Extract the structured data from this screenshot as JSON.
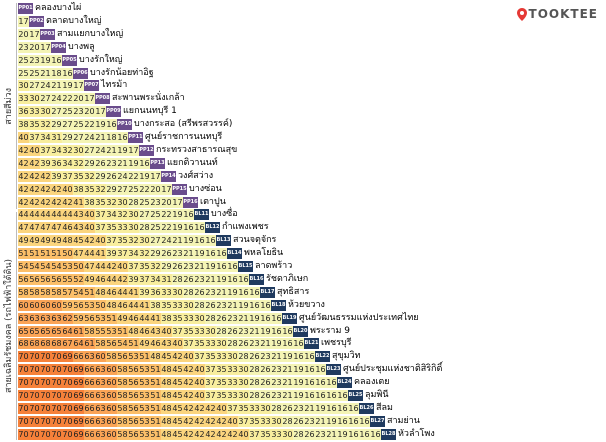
{
  "brand": {
    "name": "TOOKTEE",
    "icon": "map-pin-icon",
    "icon_color": "#e53935"
  },
  "groups": [
    {
      "label": "สายสีม่วง",
      "color": "#6a4c8c"
    },
    {
      "label": "สายเฉลิมรัชมงคล (รถไฟฟ้าใต้ดิน)",
      "color": "#1f3a5f"
    }
  ],
  "fare_colors": {
    "20": "#f4f4b5",
    "30": "#f8ee9e",
    "40": "#fbd57e",
    "50": "#fcbf69",
    "60": "#fba456",
    "70": "#f6813a"
  },
  "stations": [
    {
      "code": "PP01",
      "name": "คลองบางไผ่",
      "group": 0,
      "fares": []
    },
    {
      "code": "PP02",
      "name": "ตลาดบางใหญ่",
      "group": 0,
      "fares": [
        17
      ]
    },
    {
      "code": "PP03",
      "name": "สามแยกบางใหญ่",
      "group": 0,
      "fares": [
        20,
        17
      ]
    },
    {
      "code": "PP04",
      "name": "บางพลู",
      "group": 0,
      "fares": [
        23,
        20,
        17
      ]
    },
    {
      "code": "PP05",
      "name": "บางรักใหญ่",
      "group": 0,
      "fares": [
        25,
        23,
        19,
        16
      ]
    },
    {
      "code": "PP06",
      "name": "บางรักน้อยท่าอิฐ",
      "group": 0,
      "fares": [
        25,
        25,
        21,
        18,
        16
      ]
    },
    {
      "code": "PP07",
      "name": "ไทรม้า",
      "group": 0,
      "fares": [
        30,
        27,
        24,
        21,
        19,
        17
      ]
    },
    {
      "code": "PP08",
      "name": "สะพานพระนั่งเกล้า",
      "group": 0,
      "fares": [
        33,
        30,
        27,
        24,
        22,
        20,
        17
      ]
    },
    {
      "code": "PP09",
      "name": "แยกนนทบุรี 1",
      "group": 0,
      "fares": [
        36,
        33,
        30,
        27,
        25,
        23,
        20,
        17
      ]
    },
    {
      "code": "PP10",
      "name": "บางกระสอ (สรีพรสวรรค์)",
      "group": 0,
      "fares": [
        38,
        35,
        32,
        29,
        27,
        25,
        22,
        19,
        16
      ]
    },
    {
      "code": "PP11",
      "name": "ศูนย์ราชการนนทบุรี",
      "group": 0,
      "fares": [
        40,
        37,
        34,
        31,
        29,
        27,
        24,
        21,
        18,
        16
      ]
    },
    {
      "code": "PP12",
      "name": "กระทรวงสาธารณสุข",
      "group": 0,
      "fares": [
        42,
        40,
        37,
        34,
        32,
        30,
        27,
        24,
        21,
        19,
        17
      ]
    },
    {
      "code": "PP13",
      "name": "แยกติวานนท์",
      "group": 0,
      "fares": [
        42,
        42,
        39,
        36,
        34,
        32,
        29,
        26,
        23,
        21,
        19,
        16
      ]
    },
    {
      "code": "PP14",
      "name": "วงศ์สว่าง",
      "group": 0,
      "fares": [
        42,
        42,
        42,
        39,
        37,
        35,
        32,
        29,
        26,
        24,
        22,
        19,
        17
      ]
    },
    {
      "code": "PP15",
      "name": "บางซ่อน",
      "group": 0,
      "fares": [
        42,
        42,
        42,
        42,
        40,
        38,
        35,
        32,
        29,
        27,
        25,
        22,
        20,
        17
      ]
    },
    {
      "code": "PP16",
      "name": "เตาปูน",
      "group": 0,
      "fares": [
        42,
        42,
        42,
        42,
        42,
        41,
        38,
        35,
        32,
        30,
        28,
        25,
        23,
        20,
        17
      ]
    },
    {
      "code": "BL11",
      "name": "บางซื่อ",
      "group": 1,
      "fares": [
        44,
        44,
        44,
        44,
        44,
        43,
        40,
        37,
        34,
        32,
        30,
        27,
        25,
        22,
        19,
        16
      ]
    },
    {
      "code": "BL12",
      "name": "กำแพงเพชร",
      "group": 1,
      "fares": [
        47,
        47,
        47,
        47,
        46,
        43,
        40,
        37,
        35,
        33,
        30,
        28,
        25,
        22,
        19,
        16,
        16
      ]
    },
    {
      "code": "BL13",
      "name": "สวนจตุจักร",
      "group": 1,
      "fares": [
        49,
        49,
        49,
        49,
        48,
        45,
        42,
        40,
        37,
        35,
        32,
        30,
        27,
        24,
        21,
        19,
        16,
        16
      ]
    },
    {
      "code": "BL14",
      "name": "พหลโยธิน",
      "group": 1,
      "fares": [
        51,
        51,
        51,
        51,
        50,
        47,
        44,
        41,
        39,
        37,
        34,
        32,
        29,
        26,
        23,
        21,
        19,
        16,
        16
      ]
    },
    {
      "code": "BL15",
      "name": "ลาดพร้าว",
      "group": 1,
      "fares": [
        54,
        54,
        54,
        54,
        53,
        50,
        47,
        44,
        42,
        40,
        37,
        35,
        32,
        29,
        26,
        23,
        21,
        19,
        16,
        16
      ]
    },
    {
      "code": "BL16",
      "name": "รัชดาภิเษก",
      "group": 1,
      "fares": [
        56,
        56,
        56,
        56,
        55,
        52,
        49,
        46,
        44,
        42,
        39,
        37,
        34,
        31,
        28,
        26,
        23,
        21,
        19,
        16,
        16
      ]
    },
    {
      "code": "BL17",
      "name": "สุทธิสาร",
      "group": 1,
      "fares": [
        58,
        58,
        58,
        58,
        57,
        54,
        51,
        48,
        46,
        44,
        41,
        39,
        36,
        33,
        30,
        28,
        26,
        23,
        21,
        19,
        16,
        16
      ]
    },
    {
      "code": "BL18",
      "name": "ห้วยขวาง",
      "group": 1,
      "fares": [
        60,
        60,
        60,
        60,
        59,
        56,
        53,
        50,
        48,
        46,
        44,
        41,
        38,
        35,
        33,
        30,
        28,
        26,
        23,
        21,
        19,
        16,
        16
      ]
    },
    {
      "code": "BL19",
      "name": "ศูนย์วัฒนธรรมแห่งประเทศไทย",
      "group": 1,
      "fares": [
        63,
        63,
        63,
        63,
        62,
        59,
        56,
        53,
        51,
        49,
        46,
        44,
        41,
        38,
        35,
        33,
        30,
        28,
        26,
        23,
        21,
        19,
        16,
        16
      ]
    },
    {
      "code": "BL20",
      "name": "พระราม 9",
      "group": 1,
      "fares": [
        65,
        65,
        65,
        65,
        64,
        61,
        58,
        55,
        53,
        51,
        48,
        46,
        43,
        40,
        37,
        35,
        33,
        30,
        28,
        26,
        23,
        21,
        19,
        16,
        16
      ]
    },
    {
      "code": "BL21",
      "name": "เพชรบุรี",
      "group": 1,
      "fares": [
        68,
        68,
        68,
        68,
        67,
        64,
        61,
        58,
        56,
        54,
        51,
        49,
        46,
        43,
        40,
        37,
        35,
        33,
        30,
        28,
        26,
        23,
        21,
        19,
        16,
        16
      ]
    },
    {
      "code": "BL22",
      "name": "สุขุมวิท",
      "group": 1,
      "fares": [
        70,
        70,
        70,
        70,
        69,
        66,
        63,
        60,
        58,
        56,
        53,
        51,
        48,
        45,
        42,
        40,
        37,
        35,
        33,
        30,
        28,
        26,
        23,
        21,
        19,
        16,
        16
      ]
    },
    {
      "code": "BL23",
      "name": "ศูนย์ประชุมแห่งชาติสิริกิติ์",
      "group": 1,
      "fares": [
        70,
        70,
        70,
        70,
        70,
        69,
        66,
        63,
        60,
        58,
        56,
        53,
        51,
        48,
        45,
        42,
        40,
        37,
        35,
        33,
        30,
        28,
        26,
        23,
        21,
        19,
        16,
        16
      ]
    },
    {
      "code": "BL24",
      "name": "คลองเตย",
      "group": 1,
      "fares": [
        70,
        70,
        70,
        70,
        70,
        69,
        66,
        63,
        60,
        58,
        56,
        53,
        51,
        48,
        45,
        42,
        40,
        37,
        35,
        33,
        30,
        28,
        26,
        23,
        21,
        19,
        16,
        16,
        16
      ]
    },
    {
      "code": "BL25",
      "name": "ลุมพินี",
      "group": 1,
      "fares": [
        70,
        70,
        70,
        70,
        70,
        69,
        66,
        63,
        60,
        58,
        56,
        53,
        51,
        48,
        45,
        42,
        40,
        37,
        35,
        33,
        30,
        28,
        26,
        23,
        21,
        19,
        16,
        16,
        16,
        16
      ]
    },
    {
      "code": "BL26",
      "name": "สีลม",
      "group": 1,
      "fares": [
        70,
        70,
        70,
        70,
        70,
        69,
        66,
        63,
        60,
        58,
        56,
        53,
        51,
        48,
        45,
        42,
        42,
        42,
        40,
        37,
        35,
        33,
        30,
        28,
        26,
        23,
        21,
        19,
        16,
        16,
        16
      ]
    },
    {
      "code": "BL27",
      "name": "สามย่าน",
      "group": 1,
      "fares": [
        70,
        70,
        70,
        70,
        70,
        69,
        66,
        63,
        60,
        58,
        56,
        53,
        51,
        48,
        45,
        42,
        42,
        42,
        42,
        40,
        37,
        35,
        33,
        30,
        28,
        26,
        23,
        21,
        19,
        16,
        16,
        16
      ]
    },
    {
      "code": "BL28",
      "name": "หัวลำโพง",
      "group": 1,
      "fares": [
        70,
        70,
        70,
        70,
        70,
        69,
        66,
        63,
        60,
        58,
        56,
        53,
        51,
        48,
        45,
        42,
        42,
        42,
        42,
        42,
        40,
        37,
        35,
        33,
        30,
        28,
        26,
        23,
        21,
        19,
        16,
        16,
        16
      ]
    }
  ]
}
